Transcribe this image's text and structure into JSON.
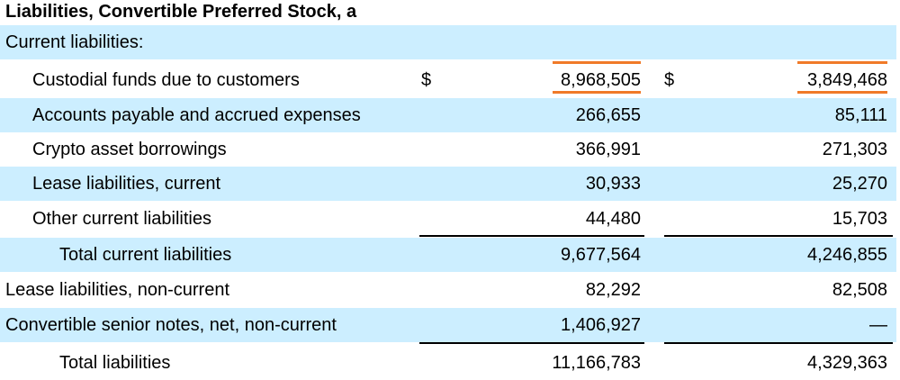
{
  "title": "Liabilities, Convertible Preferred Stock, a",
  "section_header": "Current liabilities:",
  "currency_symbol": "$",
  "rows": [
    {
      "label": "Custodial funds due to customers",
      "col1": "8,968,505",
      "col2": "3,849,468"
    },
    {
      "label": "Accounts payable and accrued expenses",
      "col1": "266,655",
      "col2": "85,111"
    },
    {
      "label": "Crypto asset borrowings",
      "col1": "366,991",
      "col2": "271,303"
    },
    {
      "label": "Lease liabilities, current",
      "col1": "30,933",
      "col2": "25,270"
    },
    {
      "label": "Other current liabilities",
      "col1": "44,480",
      "col2": "15,703"
    },
    {
      "label": "Total current liabilities",
      "col1": "9,677,564",
      "col2": "4,246,855"
    },
    {
      "label": "Lease liabilities, non-current",
      "col1": "82,292",
      "col2": "82,508"
    },
    {
      "label": "Convertible senior notes, net, non-current",
      "col1": "1,406,927",
      "col2": "—"
    },
    {
      "label": "Total liabilities",
      "col1": "11,166,783",
      "col2": "4,329,363"
    }
  ],
  "colors": {
    "row_shade": "#cceeff",
    "highlight_underline": "#f07a28"
  }
}
